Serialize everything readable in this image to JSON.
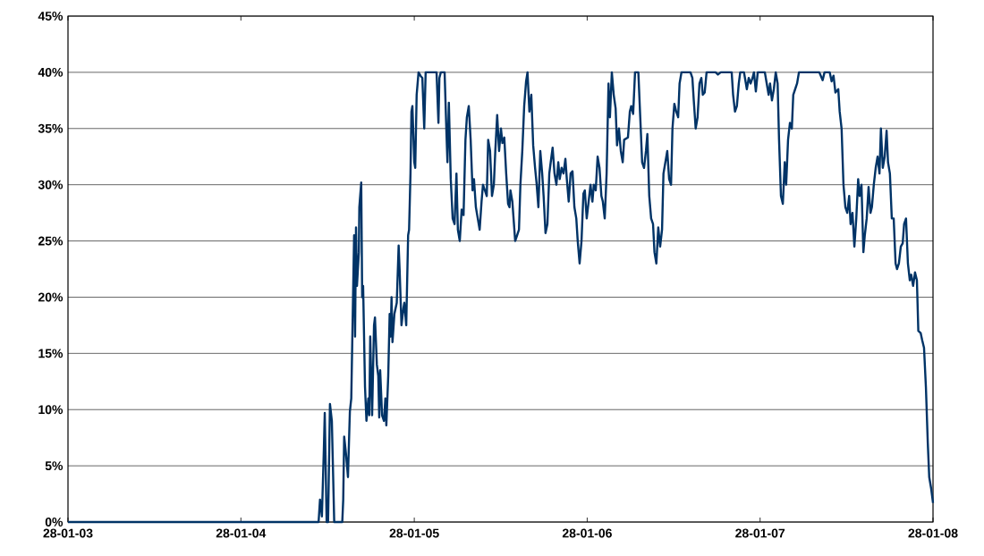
{
  "chart_data": {
    "type": "line",
    "color": "#003366",
    "grid": "y",
    "xlim": [
      "2003-01-28",
      "2008-01-28"
    ],
    "ylim": [
      0,
      45
    ],
    "xticks": [
      {
        "value": "2003-01-28",
        "label": "28-01-03"
      },
      {
        "value": "2004-01-28",
        "label": "28-01-04"
      },
      {
        "value": "2005-01-28",
        "label": "28-01-05"
      },
      {
        "value": "2006-01-28",
        "label": "28-01-06"
      },
      {
        "value": "2007-01-28",
        "label": "28-01-07"
      },
      {
        "value": "2008-01-28",
        "label": "28-01-08"
      }
    ],
    "yticks": [
      {
        "value": 0,
        "label": "0%"
      },
      {
        "value": 5,
        "label": "5%"
      },
      {
        "value": 10,
        "label": "10%"
      },
      {
        "value": 15,
        "label": "15%"
      },
      {
        "value": 20,
        "label": "20%"
      },
      {
        "value": 25,
        "label": "25%"
      },
      {
        "value": 30,
        "label": "30%"
      },
      {
        "value": 35,
        "label": "35%"
      },
      {
        "value": 40,
        "label": "40%"
      },
      {
        "value": 45,
        "label": "45%"
      }
    ],
    "x": [
      "2003-01-28",
      "2004-07-10",
      "2004-07-13",
      "2004-07-17",
      "2004-07-21",
      "2004-07-23",
      "2004-07-27",
      "2004-07-30",
      "2004-08-03",
      "2004-08-07",
      "2004-08-12",
      "2004-08-29",
      "2004-08-31",
      "2004-09-02",
      "2004-09-06",
      "2004-09-10",
      "2004-09-14",
      "2004-09-17",
      "2004-09-23",
      "2004-09-25",
      "2004-09-27",
      "2004-09-29",
      "2004-10-03",
      "2004-10-04",
      "2004-10-08",
      "2004-10-10",
      "2004-10-12",
      "2004-10-16",
      "2004-10-19",
      "2004-10-23",
      "2004-10-25",
      "2004-10-27",
      "2004-10-31",
      "2004-11-04",
      "2004-11-06",
      "2004-11-10",
      "2004-11-13",
      "2004-11-15",
      "2004-11-17",
      "2004-11-21",
      "2004-11-25",
      "2004-11-28",
      "2004-11-30",
      "2004-12-04",
      "2004-12-07",
      "2004-12-09",
      "2004-12-11",
      "2004-12-13",
      "2004-12-17",
      "2004-12-22",
      "2004-12-26",
      "2004-12-28",
      "2005-01-01",
      "2005-01-05",
      "2005-01-07",
      "2005-01-11",
      "2005-01-15",
      "2005-01-17",
      "2005-01-20",
      "2005-01-22",
      "2005-01-24",
      "2005-01-28",
      "2005-01-30",
      "2005-02-02",
      "2005-02-06",
      "2005-02-10",
      "2005-02-14",
      "2005-02-18",
      "2005-02-21",
      "2005-03-16",
      "2005-03-20",
      "2005-03-22",
      "2005-03-25",
      "2005-04-02",
      "2005-04-06",
      "2005-04-08",
      "2005-04-11",
      "2005-04-15",
      "2005-04-19",
      "2005-04-23",
      "2005-04-27",
      "2005-04-30",
      "2005-05-04",
      "2005-05-08",
      "2005-05-12",
      "2005-05-16",
      "2005-05-19",
      "2005-05-23",
      "2005-05-27",
      "2005-05-31",
      "2005-06-03",
      "2005-06-07",
      "2005-06-11",
      "2005-06-15",
      "2005-06-19",
      "2005-06-22",
      "2005-06-26",
      "2005-06-30",
      "2005-07-03",
      "2005-07-07",
      "2005-07-11",
      "2005-07-15",
      "2005-07-18",
      "2005-07-22",
      "2005-07-26",
      "2005-07-30",
      "2005-08-02",
      "2005-08-06",
      "2005-08-10",
      "2005-08-14",
      "2005-08-17",
      "2005-08-19",
      "2005-08-23",
      "2005-08-29",
      "2005-09-02",
      "2005-09-06",
      "2005-09-09",
      "2005-09-13",
      "2005-09-17",
      "2005-09-21",
      "2005-09-24",
      "2005-09-28",
      "2005-10-02",
      "2005-10-06",
      "2005-10-10",
      "2005-10-13",
      "2005-10-17",
      "2005-10-21",
      "2005-10-25",
      "2005-10-28",
      "2005-11-01",
      "2005-11-05",
      "2005-11-09",
      "2005-11-12",
      "2005-11-16",
      "2005-11-20",
      "2005-11-24",
      "2005-11-28",
      "2005-12-01",
      "2005-12-05",
      "2005-12-09",
      "2005-12-13",
      "2005-12-16",
      "2005-12-20",
      "2005-12-24",
      "2005-12-28",
      "2006-01-01",
      "2006-01-05",
      "2006-01-08",
      "2006-01-12",
      "2006-01-16",
      "2006-01-20",
      "2006-01-23",
      "2006-01-27",
      "2006-01-31",
      "2006-02-04",
      "2006-02-08",
      "2006-02-11",
      "2006-02-15",
      "2006-02-19",
      "2006-02-23",
      "2006-02-27",
      "2006-03-02",
      "2006-03-06",
      "2006-03-10",
      "2006-03-14",
      "2006-03-17",
      "2006-03-21",
      "2006-03-25",
      "2006-03-29",
      "2006-04-01",
      "2006-04-05",
      "2006-04-09",
      "2006-04-13",
      "2006-04-16",
      "2006-04-24",
      "2006-04-28",
      "2006-05-01",
      "2006-05-05",
      "2006-05-09",
      "2006-05-16",
      "2006-05-20",
      "2006-05-24",
      "2006-05-28",
      "2006-06-01",
      "2006-06-04",
      "2006-06-08",
      "2006-06-12",
      "2006-06-16",
      "2006-06-19",
      "2006-06-23",
      "2006-06-27",
      "2006-07-01",
      "2006-07-05",
      "2006-07-08",
      "2006-07-12",
      "2006-07-16",
      "2006-07-20",
      "2006-07-24",
      "2006-07-27",
      "2006-07-31",
      "2006-08-04",
      "2006-08-08",
      "2006-08-11",
      "2006-08-15",
      "2006-09-03",
      "2006-09-07",
      "2006-09-10",
      "2006-09-14",
      "2006-09-18",
      "2006-09-22",
      "2006-09-26",
      "2006-09-29",
      "2006-10-03",
      "2006-10-07",
      "2006-10-26",
      "2006-10-31",
      "2006-11-06",
      "2006-11-29",
      "2006-12-02",
      "2006-12-06",
      "2006-12-10",
      "2006-12-14",
      "2006-12-17",
      "2006-12-25",
      "2006-12-31",
      "2007-01-04",
      "2007-01-08",
      "2007-01-12",
      "2007-01-15",
      "2007-01-19",
      "2007-01-23",
      "2007-02-07",
      "2007-02-11",
      "2007-02-15",
      "2007-02-18",
      "2007-02-22",
      "2007-02-26",
      "2007-03-02",
      "2007-03-06",
      "2007-03-09",
      "2007-03-13",
      "2007-03-17",
      "2007-03-21",
      "2007-03-24",
      "2007-03-28",
      "2007-04-01",
      "2007-04-05",
      "2007-04-08",
      "2007-04-12",
      "2007-04-16",
      "2007-04-20",
      "2007-06-02",
      "2007-06-09",
      "2007-06-13",
      "2007-06-24",
      "2007-06-28",
      "2007-07-02",
      "2007-07-06",
      "2007-07-12",
      "2007-07-15",
      "2007-07-19",
      "2007-07-23",
      "2007-07-27",
      "2007-07-31",
      "2007-08-04",
      "2007-08-07",
      "2007-08-11",
      "2007-08-15",
      "2007-08-19",
      "2007-08-23",
      "2007-08-26",
      "2007-08-30",
      "2007-09-03",
      "2007-09-06",
      "2007-09-10",
      "2007-09-14",
      "2007-09-18",
      "2007-09-21",
      "2007-09-25",
      "2007-09-29",
      "2007-10-03",
      "2007-10-07",
      "2007-10-10",
      "2007-10-14",
      "2007-10-18",
      "2007-10-22",
      "2007-10-25",
      "2007-10-29",
      "2007-11-02",
      "2007-11-06",
      "2007-11-10",
      "2007-11-13",
      "2007-11-17",
      "2007-11-21",
      "2007-11-25",
      "2007-11-28",
      "2007-12-02",
      "2007-12-06",
      "2007-12-10",
      "2007-12-13",
      "2007-12-17",
      "2007-12-21",
      "2007-12-25",
      "2007-12-28",
      "2008-01-02",
      "2008-01-05",
      "2008-01-09",
      "2008-01-13",
      "2008-01-17",
      "2008-01-20",
      "2008-01-24",
      "2008-01-28"
    ],
    "values": [
      0,
      0,
      2,
      0.5,
      6.3,
      9.7,
      0,
      0,
      10.5,
      9,
      0,
      0,
      2,
      7.6,
      6,
      4,
      9.8,
      11,
      25.5,
      16.5,
      26.2,
      21,
      24,
      28,
      30.2,
      20,
      21,
      12,
      9,
      11,
      9.5,
      16.5,
      9.5,
      17.5,
      18.2,
      14,
      13,
      9.3,
      13.5,
      9.5,
      9,
      11,
      8.6,
      13,
      18.5,
      16.5,
      20,
      16,
      18.5,
      19.5,
      24.6,
      22.5,
      17.5,
      19,
      19.5,
      17.5,
      25.5,
      26,
      31,
      36.5,
      37,
      32,
      31.5,
      38,
      40,
      39.7,
      39.5,
      35,
      40,
      40,
      35.5,
      39.5,
      40,
      40,
      34.5,
      32,
      37.3,
      30.5,
      27,
      26.5,
      31,
      26,
      25,
      27.8,
      27.3,
      34,
      36,
      37,
      34,
      29.5,
      30.5,
      28,
      27,
      26,
      28.5,
      30,
      29.5,
      29,
      34,
      33,
      29,
      30,
      33,
      36.2,
      33,
      35,
      33.7,
      34.2,
      31,
      28.3,
      28,
      29.5,
      28.5,
      25,
      25.5,
      26,
      30,
      33,
      37,
      39.2,
      40,
      36.5,
      38,
      33.5,
      31.5,
      30.2,
      28,
      33,
      31,
      29,
      25.7,
      26.5,
      31,
      32,
      33.3,
      31,
      30,
      32,
      30.5,
      31.5,
      31,
      32.3,
      30.5,
      28.5,
      31,
      31.2,
      28,
      27,
      25,
      23,
      25,
      29.2,
      29.5,
      27,
      28.5,
      30,
      28.5,
      30,
      29.5,
      32.5,
      31.5,
      29,
      28.5,
      27,
      31,
      39,
      36,
      40,
      38,
      36.8,
      33.5,
      35,
      33,
      32,
      34,
      34.2,
      36.5,
      37,
      36.3,
      40,
      40,
      36,
      32,
      31.5,
      33,
      34.5,
      29,
      27,
      26.5,
      24,
      23,
      26.2,
      24.5,
      26,
      31,
      32,
      33,
      30.5,
      30,
      35,
      37.2,
      36.5,
      36,
      39,
      40,
      40,
      39.5,
      37.5,
      35,
      36,
      39,
      39.5,
      38,
      38.2,
      40,
      40,
      39.8,
      40,
      40,
      38,
      36.5,
      37,
      39,
      40,
      40,
      38.5,
      39.5,
      39,
      39.5,
      40,
      38.3,
      40,
      40,
      39,
      38,
      39,
      37.5,
      38.5,
      40,
      39,
      34,
      29,
      28.3,
      32,
      30,
      34,
      35.5,
      35,
      38,
      38.5,
      39,
      40,
      40,
      39.3,
      40,
      40,
      39.2,
      39.7,
      38.2,
      38.5,
      36.5,
      35,
      30,
      28,
      27.5,
      29,
      26.5,
      27.5,
      24.5,
      27,
      30.5,
      29,
      30,
      24,
      25.5,
      27,
      29.8,
      27.5,
      28,
      30,
      31.5,
      32.5,
      31,
      35,
      31.5,
      32.5,
      34.8,
      32,
      31,
      27,
      27,
      23,
      22.5,
      23,
      24.5,
      24.8,
      26.5,
      27,
      23,
      21.5,
      22,
      21,
      22.2,
      21.5,
      17,
      16.8,
      16.2,
      15.5,
      12,
      7,
      4,
      3,
      1.7
    ]
  }
}
